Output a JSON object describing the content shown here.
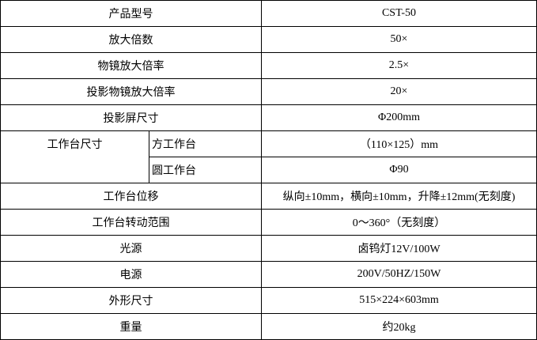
{
  "table": {
    "rows": [
      {
        "label": "产品型号",
        "value": "CST-50"
      },
      {
        "label": "放大倍数",
        "value": "50×"
      },
      {
        "label": "物镜放大倍率",
        "value": "2.5×"
      },
      {
        "label": "投影物镜放大倍率",
        "value": "20×"
      },
      {
        "label": "投影屏尺寸",
        "value": "Φ200mm"
      },
      {
        "label": "工作台尺寸",
        "sub": [
          {
            "label": "方工作台",
            "value": "（110×125）mm"
          },
          {
            "label": "圆工作台",
            "value": "Φ90"
          }
        ]
      },
      {
        "label": "工作台位移",
        "value": "纵向±10mm，横向±10mm，升降±12mm(无刻度)"
      },
      {
        "label": "工作台转动范围",
        "value": "0～360°（无刻度）"
      },
      {
        "label": "光源",
        "value": "卤钨灯12V/100W"
      },
      {
        "label": "电源",
        "value": "200V/50HZ/150W"
      },
      {
        "label": "外形尺寸",
        "value": "515×224×603mm"
      },
      {
        "label": "重量",
        "value": "约20kg"
      }
    ]
  }
}
